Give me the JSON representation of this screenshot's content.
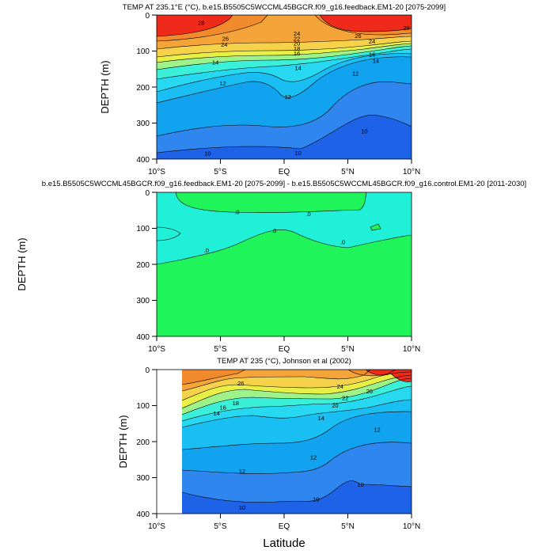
{
  "chart_data": [
    {
      "type": "contour",
      "title": "TEMP AT 235.1°E (°C), b.e15.B5505C5WCCML45BGCR.f09_g16.feedback.EM1-20 [2075-2099]",
      "ylabel": "DEPTH (m)",
      "xlim": [
        -10,
        10
      ],
      "ylim": [
        0,
        400
      ],
      "y_inverted": true,
      "xtick_labels": [
        "10°S",
        "5°S",
        "EQ",
        "5°N",
        "10°N"
      ],
      "ytick_labels": [
        "0",
        "100",
        "200",
        "300",
        "400"
      ],
      "colors": {
        "hot": "#ef2a1a",
        "warm": "#f5a43a",
        "mid": "#f0f04c",
        "cool": "#27d9f0",
        "cold": "#1e62e8"
      },
      "contour_labels": [
        {
          "text": "28",
          "x": -6.5,
          "y": 22
        },
        {
          "text": "28",
          "x": 9.6,
          "y": 36
        },
        {
          "text": "26",
          "x": -4.6,
          "y": 66
        },
        {
          "text": "26",
          "x": 5.8,
          "y": 58
        },
        {
          "text": "24",
          "x": -4.7,
          "y": 82
        },
        {
          "text": "24",
          "x": 1.0,
          "y": 52
        },
        {
          "text": "24",
          "x": 6.9,
          "y": 74
        },
        {
          "text": "22",
          "x": 1.0,
          "y": 66
        },
        {
          "text": "20",
          "x": 1.0,
          "y": 79
        },
        {
          "text": "18",
          "x": 1.0,
          "y": 93
        },
        {
          "text": "16",
          "x": 1.0,
          "y": 107
        },
        {
          "text": "16",
          "x": 6.9,
          "y": 110
        },
        {
          "text": "14",
          "x": -5.4,
          "y": 132
        },
        {
          "text": "14",
          "x": 1.1,
          "y": 147
        },
        {
          "text": "14",
          "x": 7.2,
          "y": 128
        },
        {
          "text": "12",
          "x": -4.8,
          "y": 190
        },
        {
          "text": "12",
          "x": 0.3,
          "y": 227
        },
        {
          "text": "12",
          "x": 5.6,
          "y": 163
        },
        {
          "text": "10",
          "x": -6.0,
          "y": 385
        },
        {
          "text": "10",
          "x": 1.1,
          "y": 383
        },
        {
          "text": "10",
          "x": 6.3,
          "y": 323
        }
      ]
    },
    {
      "type": "contour",
      "title": "b.e15.B5505C5WCCML45BGCR.f09_g16.feedback.EM1-20 [2075-2099] - b.e15.B5505C5WCCML45BGCR.f09_g16.control.EM1-20 [2011-2030]",
      "ylabel": "DEPTH (m)",
      "xlim": [
        -10,
        10
      ],
      "ylim": [
        0,
        400
      ],
      "y_inverted": true,
      "xtick_labels": [
        "10°S",
        "5°S",
        "EQ",
        "5°N",
        "10°N"
      ],
      "ytick_labels": [
        "0",
        "100",
        "200",
        "300",
        "400"
      ],
      "colors": {
        "cyan": "#20f0d8",
        "green": "#1ff55a"
      },
      "contour_labels": [
        {
          "text": ".0",
          "x": -3.7,
          "y": 55
        },
        {
          "text": ".0",
          "x": 1.9,
          "y": 60
        },
        {
          "text": ".0",
          "x": -0.8,
          "y": 107
        },
        {
          "text": ".0",
          "x": -6.1,
          "y": 162
        },
        {
          "text": ".0",
          "x": 4.6,
          "y": 138
        }
      ]
    },
    {
      "type": "contour",
      "title": "TEMP AT 235 (°C), Johnson et al (2002)",
      "ylabel": "DEPTH (m)",
      "xlabel": "Latitude",
      "xlim": [
        -10,
        10
      ],
      "ylim": [
        0,
        400
      ],
      "data_xlim": [
        -8,
        10
      ],
      "y_inverted": true,
      "xtick_labels": [
        "10°S",
        "5°S",
        "EQ",
        "5°N",
        "10°N"
      ],
      "ytick_labels": [
        "0",
        "100",
        "200",
        "300",
        "400"
      ],
      "colors": {
        "hot": "#ef2a1a",
        "warm": "#f5a43a",
        "mid": "#f0f04c",
        "cool": "#27d9f0",
        "cold": "#1e62e8"
      },
      "contour_labels": [
        {
          "text": "26",
          "x": -3.4,
          "y": 38
        },
        {
          "text": "24",
          "x": 4.4,
          "y": 47
        },
        {
          "text": "26",
          "x": 6.7,
          "y": 60
        },
        {
          "text": "22",
          "x": 4.8,
          "y": 79
        },
        {
          "text": "20",
          "x": 4.0,
          "y": 100
        },
        {
          "text": "18",
          "x": -3.8,
          "y": 93
        },
        {
          "text": "16",
          "x": -4.8,
          "y": 106
        },
        {
          "text": "14",
          "x": -5.3,
          "y": 122
        },
        {
          "text": "14",
          "x": 2.9,
          "y": 135
        },
        {
          "text": "12",
          "x": 7.3,
          "y": 167
        },
        {
          "text": "12",
          "x": 2.3,
          "y": 244
        },
        {
          "text": "12",
          "x": -3.3,
          "y": 282
        },
        {
          "text": "10",
          "x": 2.5,
          "y": 360
        },
        {
          "text": "10",
          "x": -3.3,
          "y": 384
        },
        {
          "text": "10",
          "x": 6.0,
          "y": 320
        }
      ]
    }
  ]
}
